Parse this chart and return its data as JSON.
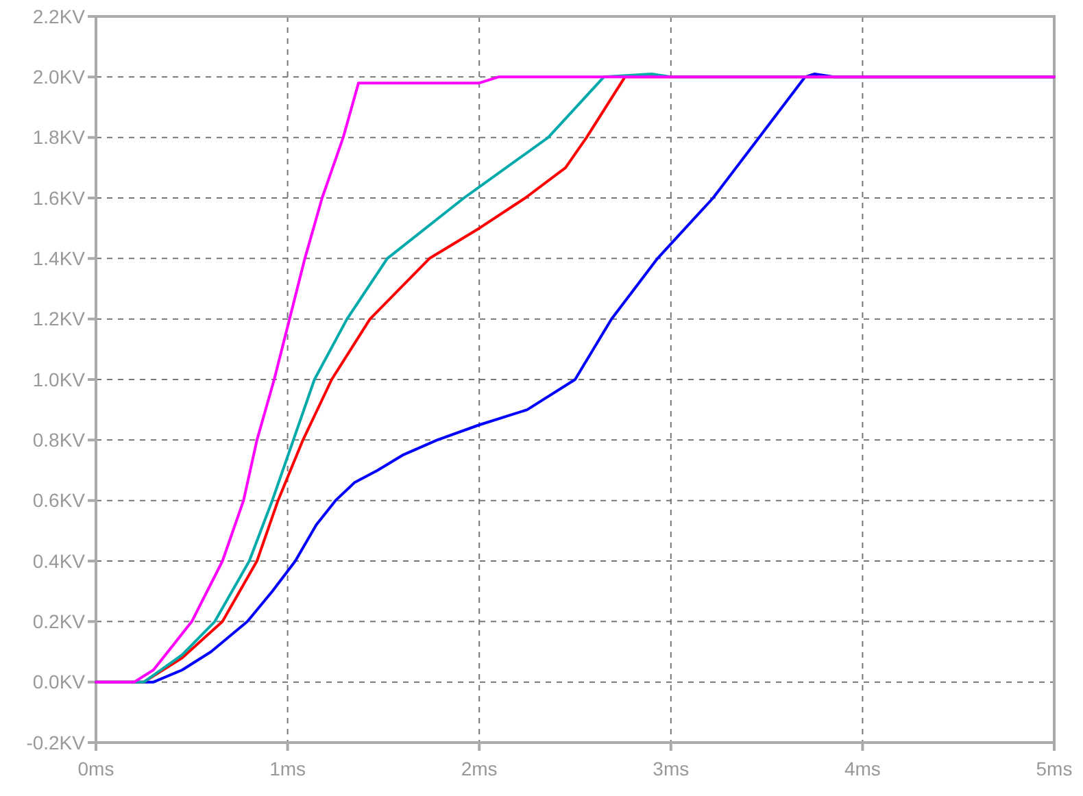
{
  "chart_data": {
    "type": "line",
    "xlim": [
      0,
      5
    ],
    "ylim": [
      -0.2,
      2.2
    ],
    "xticks": [
      {
        "value": 0,
        "label": "0ms"
      },
      {
        "value": 1,
        "label": "1ms"
      },
      {
        "value": 2,
        "label": "2ms"
      },
      {
        "value": 3,
        "label": "3ms"
      },
      {
        "value": 4,
        "label": "4ms"
      },
      {
        "value": 5,
        "label": "5ms"
      }
    ],
    "yticks": [
      {
        "value": -0.2,
        "label": "-0.2KV"
      },
      {
        "value": 0,
        "label": "0.0KV"
      },
      {
        "value": 0.2,
        "label": "0.2KV"
      },
      {
        "value": 0.4,
        "label": "0.4KV"
      },
      {
        "value": 0.6,
        "label": "0.6KV"
      },
      {
        "value": 0.8,
        "label": "0.8KV"
      },
      {
        "value": 1.0,
        "label": "1.0KV"
      },
      {
        "value": 1.2,
        "label": "1.2KV"
      },
      {
        "value": 1.4,
        "label": "1.4KV"
      },
      {
        "value": 1.6,
        "label": "1.6KV"
      },
      {
        "value": 1.8,
        "label": "1.8KV"
      },
      {
        "value": 2.0,
        "label": "2.0KV"
      },
      {
        "value": 2.2,
        "label": "2.2KV"
      }
    ],
    "grid": true,
    "marker": "none",
    "line_style": "solid",
    "series": [
      {
        "color": "#0000ff",
        "x": [
          0,
          0.3,
          0.45,
          0.6,
          0.79,
          0.92,
          1.04,
          1.15,
          1.25,
          1.35,
          1.47,
          1.6,
          1.78,
          2.0,
          2.25,
          2.5,
          2.69,
          2.93,
          3.22,
          3.46,
          3.7,
          3.75,
          3.85,
          5
        ],
        "values": [
          0,
          0,
          0.04,
          0.1,
          0.2,
          0.3,
          0.4,
          0.52,
          0.6,
          0.66,
          0.7,
          0.75,
          0.8,
          0.85,
          0.9,
          1.0,
          1.2,
          1.4,
          1.6,
          1.8,
          2.0,
          2.01,
          2.0,
          2.0
        ]
      },
      {
        "color": "#ff0000",
        "x": [
          0,
          0.25,
          0.45,
          0.66,
          0.84,
          0.95,
          1.08,
          1.23,
          1.43,
          1.74,
          2.0,
          2.24,
          2.45,
          2.56,
          2.76,
          5
        ],
        "values": [
          0,
          0,
          0.08,
          0.2,
          0.4,
          0.6,
          0.8,
          1.0,
          1.2,
          1.4,
          1.5,
          1.6,
          1.7,
          1.8,
          2.0,
          2.0
        ]
      },
      {
        "color": "#00aaaa",
        "x": [
          0,
          0.25,
          0.45,
          0.62,
          0.8,
          0.92,
          1.03,
          1.14,
          1.31,
          1.52,
          1.92,
          2.36,
          2.65,
          2.9,
          3.0,
          5
        ],
        "values": [
          0,
          0,
          0.09,
          0.2,
          0.4,
          0.6,
          0.8,
          1.0,
          1.2,
          1.4,
          1.6,
          1.8,
          2.0,
          2.01,
          2.0,
          2.0
        ]
      },
      {
        "color": "#ff00ff",
        "x": [
          0,
          0.2,
          0.3,
          0.5,
          0.66,
          0.77,
          0.84,
          0.93,
          1.01,
          1.09,
          1.18,
          1.29,
          1.37,
          2.0,
          2.1,
          5
        ],
        "values": [
          0,
          0,
          0.04,
          0.2,
          0.4,
          0.6,
          0.8,
          1.0,
          1.2,
          1.4,
          1.6,
          1.8,
          1.98,
          1.98,
          2.0,
          2.0
        ]
      }
    ]
  }
}
